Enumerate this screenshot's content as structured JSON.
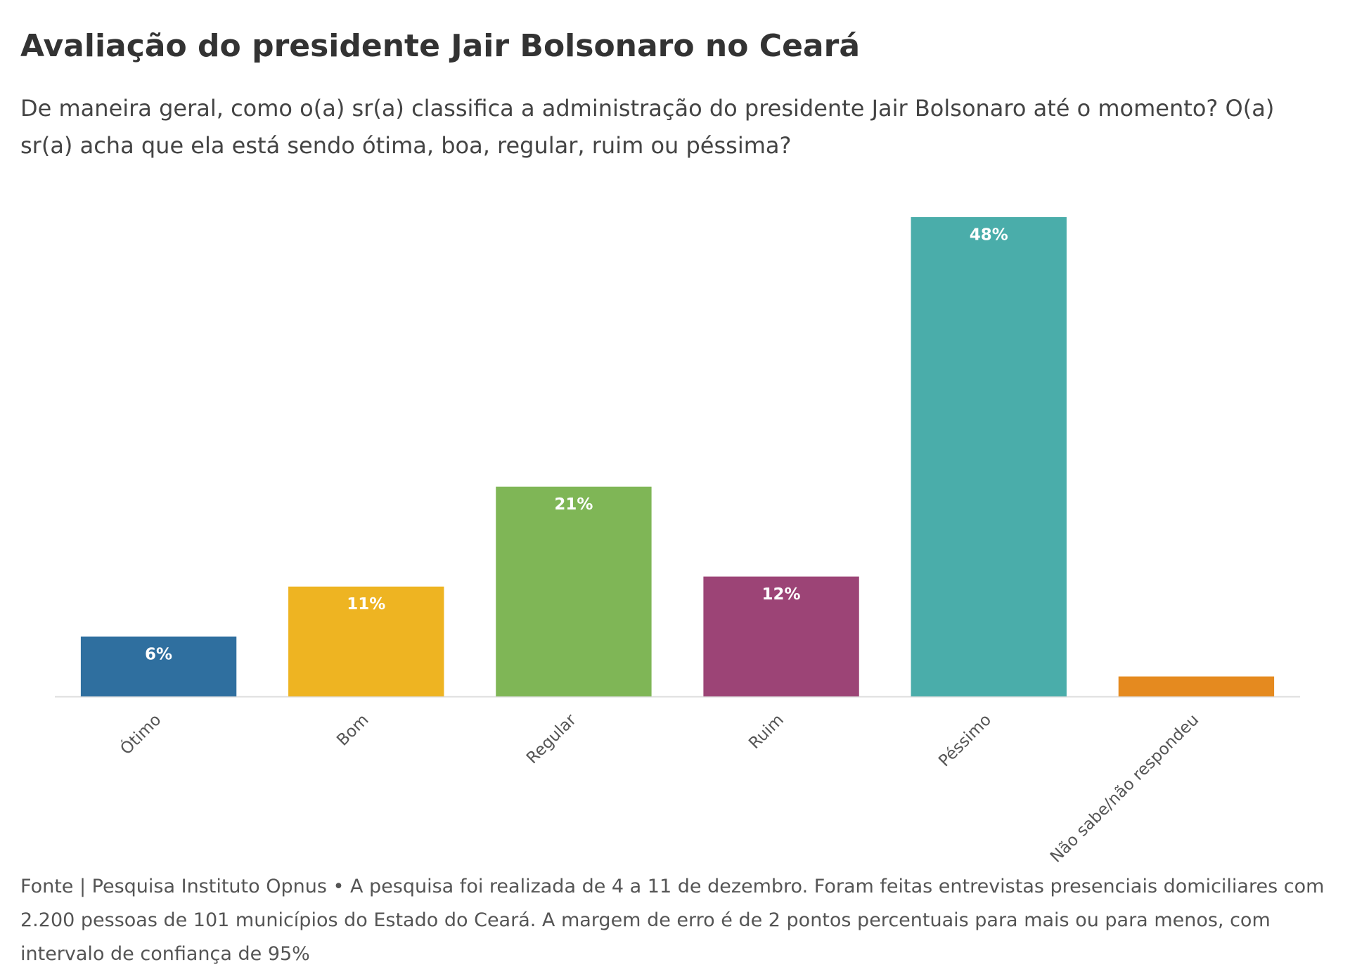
{
  "chart_data": {
    "type": "bar",
    "title": "Avaliação do presidente Jair Bolsonaro no Ceará",
    "subtitle": "De maneira geral, como o(a) sr(a) classifica a administração do presidente Jair Bolsonaro até o momento? O(a) sr(a) acha que ela está sendo ótima, boa, regular, ruim ou péssima?",
    "categories": [
      "Ótimo",
      "Bom",
      "Regular",
      "Ruim",
      "Péssimo",
      "Não sabe/não respondeu"
    ],
    "values": [
      6,
      11,
      21,
      12,
      48,
      2
    ],
    "value_labels": [
      "6%",
      "11%",
      "21%",
      "12%",
      "48%",
      null
    ],
    "colors": [
      "#2f6f9f",
      "#eeb422",
      "#7fb656",
      "#9c4476",
      "#4aadaa",
      "#e58a1f"
    ],
    "note": "Fonte | Pesquisa Instituto Opnus • A pesquisa foi realizada de 4 a 11 de dezembro. Foram feitas entrevistas presenciais domiciliares com 2.200 pessoas de 101 municípios do Estado do Ceará. A margem de erro é de 2 pontos percentuais para mais ou para menos, com intervalo de confiança de 95%"
  }
}
